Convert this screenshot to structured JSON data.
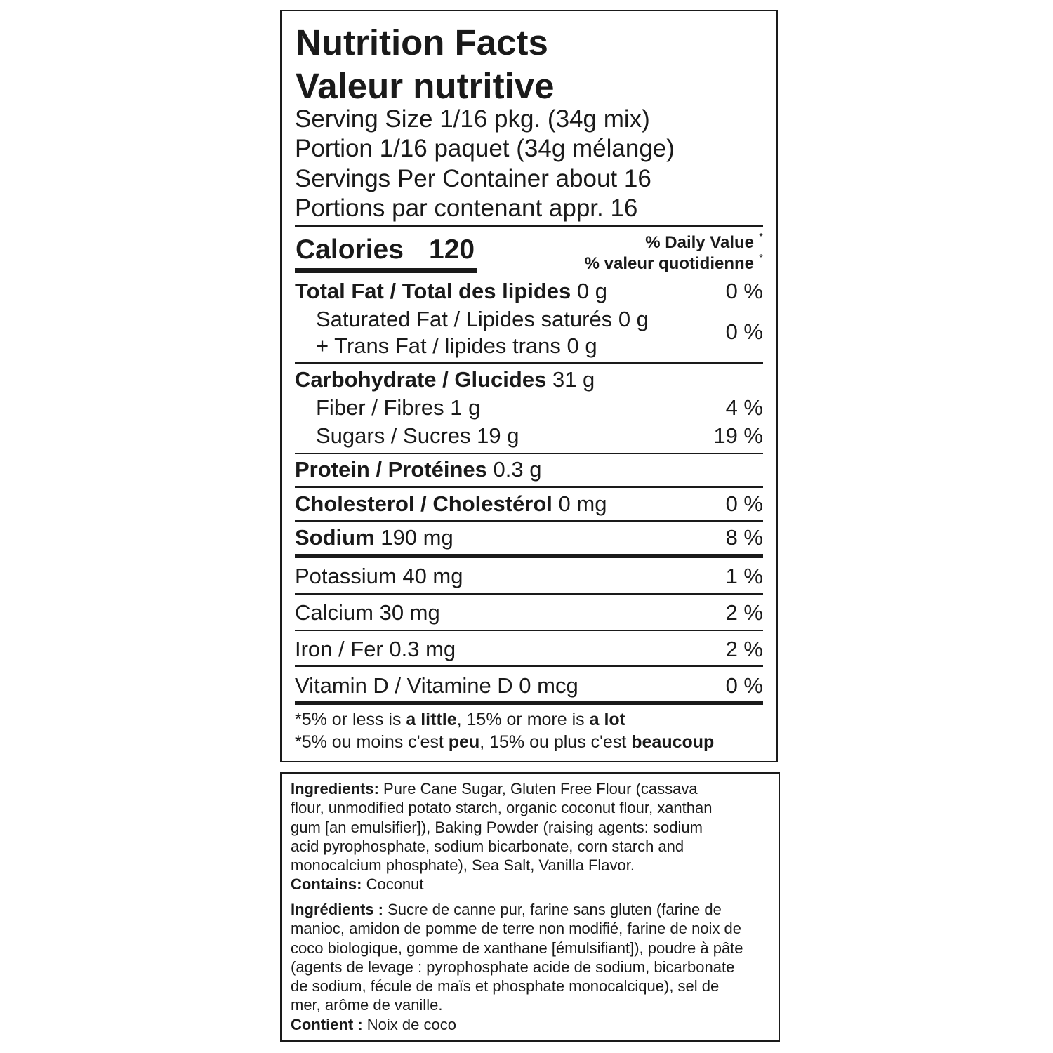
{
  "panel": {
    "title_en": "Nutrition Facts",
    "title_fr": "Valeur nutritive",
    "serving_size_en": "Serving Size 1/16 pkg. (34g mix)",
    "serving_size_fr": "Portion 1/16 paquet (34g mélange)",
    "servings_en": "Servings Per Container about 16",
    "servings_fr": "Portions par contenant appr. 16",
    "calories_label": "Calories",
    "calories_value": "120",
    "dv_en": "% Daily Value",
    "dv_fr": "% valeur quotidienne",
    "asterisk": "*",
    "total_fat": {
      "label": "Total Fat / Total des lipides",
      "amount": "0 g",
      "dv": "0 %"
    },
    "saturated_fat": {
      "label": "Saturated Fat / Lipides saturés",
      "amount": "0 g"
    },
    "trans_fat": {
      "label": "+ Trans Fat / lipides trans",
      "amount": "0 g"
    },
    "sat_trans_dv": "0 %",
    "carbohydrate": {
      "label": "Carbohydrate / Glucides",
      "amount": "31 g"
    },
    "fiber": {
      "label": "Fiber / Fibres",
      "amount": "1 g",
      "dv": "4 %"
    },
    "sugars": {
      "label": "Sugars / Sucres",
      "amount": "19 g",
      "dv": "19 %"
    },
    "protein": {
      "label": "Protein / Protéines",
      "amount": "0.3 g"
    },
    "cholesterol": {
      "label": "Cholesterol / Cholestérol",
      "amount": "0 mg",
      "dv": "0 %"
    },
    "sodium": {
      "label": "Sodium",
      "amount": "190 mg",
      "dv": "8 %"
    },
    "potassium": {
      "label": "Potassium 40 mg",
      "dv": "1 %"
    },
    "calcium": {
      "label": "Calcium 30 mg",
      "dv": "2 %"
    },
    "iron": {
      "label": "Iron / Fer 0.3 mg",
      "dv": "2 %"
    },
    "vitamin_d": {
      "label": "Vitamin D / Vitamine D 0 mcg",
      "dv": "0 %"
    },
    "footnote_en": {
      "a": "*5% or less is ",
      "b": "a little",
      "c": ", 15% or more is ",
      "d": "a lot"
    },
    "footnote_fr": {
      "a": "*5% ou moins c'est ",
      "b": "peu",
      "c": ", 15% ou plus c'est ",
      "d": "beaucoup"
    }
  },
  "ingredients": {
    "en_label": "Ingredients:",
    "en_lines": [
      " Pure Cane Sugar, Gluten Free Flour (cassava",
      "flour, unmodified potato starch, organic coconut flour, xanthan",
      "gum [an emulsifier]), Baking Powder (raising agents: sodium",
      "acid pyrophosphate, sodium bicarbonate, corn starch and",
      "monocalcium phosphate), Sea Salt, Vanilla Flavor."
    ],
    "contains_label": "Contains:",
    "contains_value": " Coconut",
    "fr_label": "Ingrédients :",
    "fr_lines": [
      " Sucre de canne pur, farine sans gluten (farine de",
      "manioc, amidon de pomme de terre non modifié, farine de noix de",
      "coco biologique, gomme de xanthane [émulsifiant]), poudre à pâte",
      "(agents de levage : pyrophosphate acide de sodium, bicarbonate",
      "de sodium, fécule de maïs et phosphate monocalcique), sel de",
      "mer, arôme de vanille."
    ],
    "contient_label": "Contient :",
    "contient_value": " Noix de coco"
  }
}
